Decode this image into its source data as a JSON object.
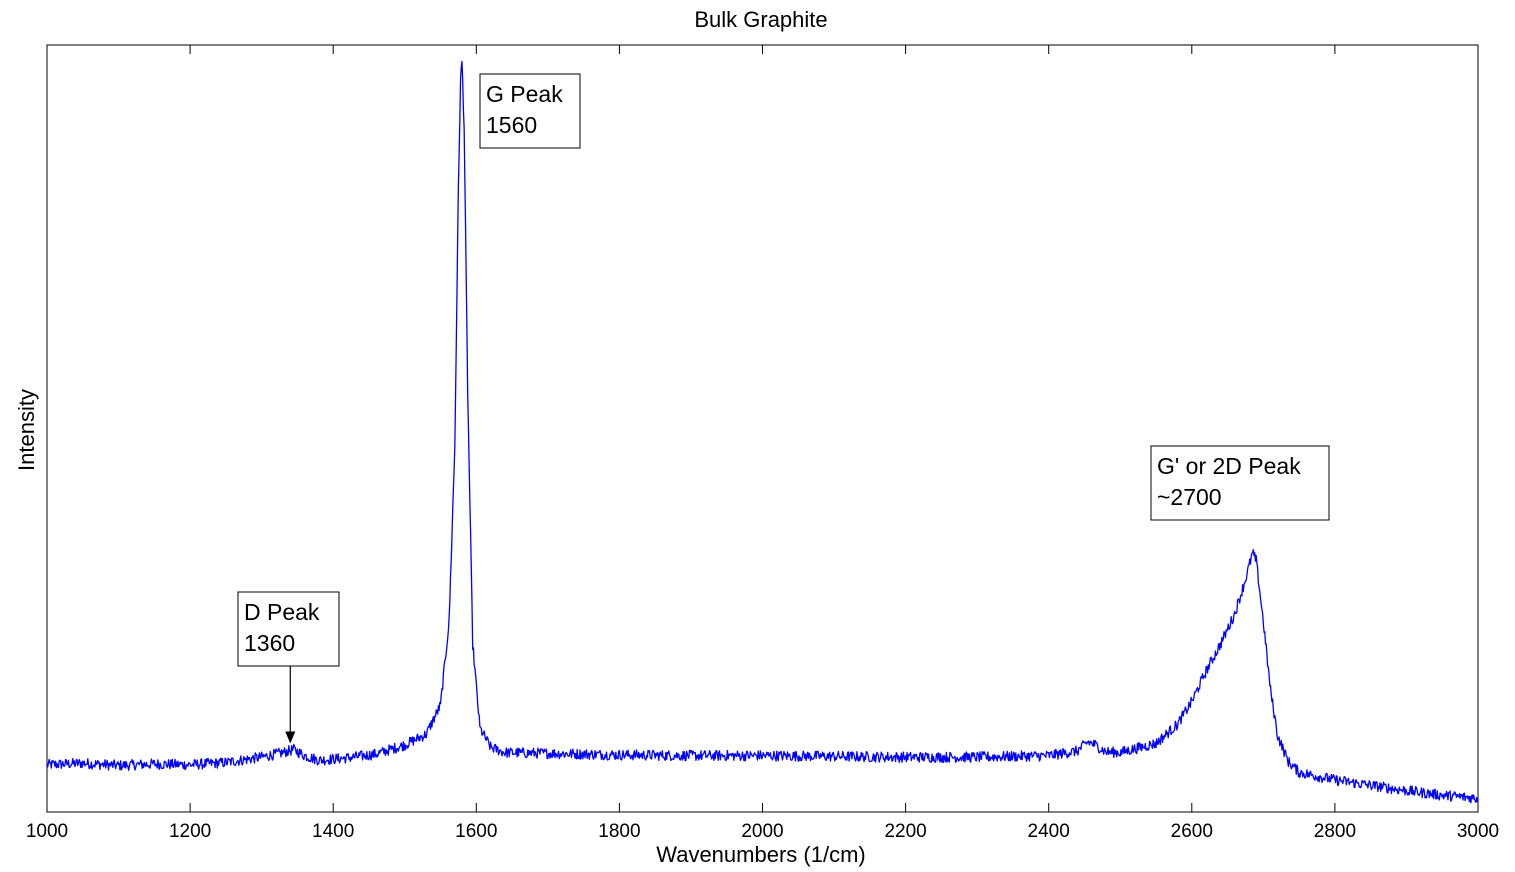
{
  "chart_data": {
    "type": "line",
    "title": "Bulk Graphite",
    "xlabel": "Wavenumbers (1/cm)",
    "ylabel": "Intensity",
    "xlim": [
      1000,
      3000
    ],
    "ylim": [
      0,
      1
    ],
    "y_tick_labels_shown": false,
    "grid": false,
    "legend": "none",
    "x_ticks": [
      1000,
      1200,
      1400,
      1600,
      1800,
      2000,
      2200,
      2400,
      2600,
      2800,
      3000
    ],
    "series": [
      {
        "color": "#0000ff",
        "x": [
          1000,
          1050,
          1100,
          1150,
          1200,
          1250,
          1300,
          1330,
          1345,
          1360,
          1380,
          1420,
          1460,
          1500,
          1530,
          1550,
          1562,
          1570,
          1575,
          1578,
          1580,
          1583,
          1588,
          1595,
          1605,
          1620,
          1640,
          1700,
          1800,
          1900,
          2000,
          2100,
          2200,
          2300,
          2400,
          2440,
          2455,
          2465,
          2480,
          2500,
          2550,
          2580,
          2600,
          2620,
          2640,
          2660,
          2675,
          2685,
          2690,
          2700,
          2710,
          2720,
          2735,
          2750,
          2800,
          2850,
          2900,
          2950,
          3000
        ],
        "y": [
          0.062,
          0.064,
          0.061,
          0.063,
          0.062,
          0.065,
          0.072,
          0.078,
          0.082,
          0.074,
          0.068,
          0.071,
          0.076,
          0.088,
          0.102,
          0.14,
          0.25,
          0.48,
          0.82,
          0.96,
          0.985,
          0.9,
          0.55,
          0.22,
          0.11,
          0.085,
          0.078,
          0.077,
          0.075,
          0.074,
          0.074,
          0.073,
          0.072,
          0.072,
          0.074,
          0.08,
          0.092,
          0.088,
          0.079,
          0.078,
          0.09,
          0.115,
          0.145,
          0.185,
          0.22,
          0.26,
          0.305,
          0.34,
          0.33,
          0.25,
          0.16,
          0.1,
          0.066,
          0.052,
          0.042,
          0.035,
          0.028,
          0.022,
          0.018
        ]
      }
    ],
    "annotations": [
      {
        "lines": [
          "D Peak",
          "1360"
        ],
        "x": 1340,
        "y": 0.082,
        "arrow": true
      },
      {
        "lines": [
          "G Peak",
          "1560"
        ],
        "x": 1578,
        "y": 0.985,
        "arrow": false
      },
      {
        "lines": [
          "G' or 2D Peak",
          "~2700"
        ],
        "x": 2685,
        "y": 0.34,
        "arrow": false
      }
    ]
  }
}
